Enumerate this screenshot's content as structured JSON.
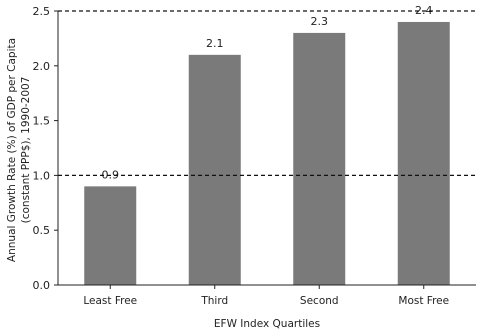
{
  "chart_data": {
    "type": "bar",
    "categories": [
      "Least Free",
      "Third",
      "Second",
      "Most Free"
    ],
    "values": [
      0.9,
      2.1,
      2.3,
      2.4
    ],
    "data_labels": [
      "0.9",
      "2.1",
      "2.3",
      "2.4"
    ],
    "ylim": [
      0,
      2.5
    ],
    "yticks": [
      0.0,
      0.5,
      1.0,
      1.5,
      2.0,
      2.5
    ],
    "ytick_labels": [
      "0.0",
      "0.5",
      "1.0",
      "1.5",
      "2.0",
      "2.5"
    ],
    "reference_lines": [
      1.0,
      2.5
    ],
    "xlabel": "EFW Index Quartiles",
    "ylabel_lines": [
      "Annual Growth Rate (%) of GDP per Capita",
      "(constant PPP$), 1990-2007"
    ],
    "grid": false,
    "bar_color": "#7a7a7a",
    "axis_color": "#222222",
    "reference_line_color": "#111111"
  }
}
